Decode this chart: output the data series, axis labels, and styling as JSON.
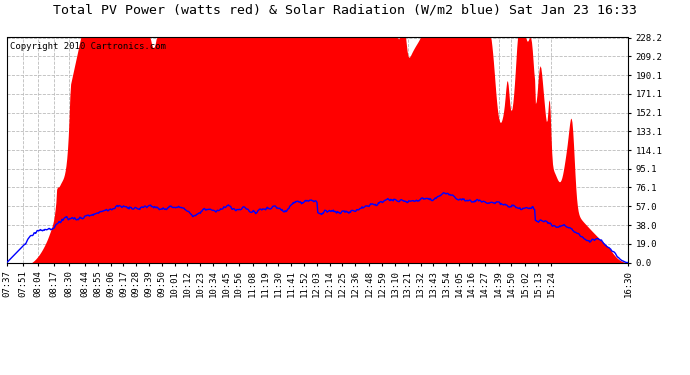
{
  "title": "Total PV Power (watts red) & Solar Radiation (W/m2 blue) Sat Jan 23 16:33",
  "copyright": "Copyright 2010 Cartronics.com",
  "ylabel_right": [
    "0.0",
    "19.0",
    "38.0",
    "57.0",
    "76.1",
    "95.1",
    "114.1",
    "133.1",
    "152.1",
    "171.1",
    "190.1",
    "209.2",
    "228.2"
  ],
  "yticks_right": [
    0.0,
    19.0,
    38.0,
    57.0,
    76.1,
    95.1,
    114.1,
    133.1,
    152.1,
    171.1,
    190.1,
    209.2,
    228.2
  ],
  "ylim": [
    0,
    228.2
  ],
  "background_color": "#ffffff",
  "plot_bg_color": "#ffffff",
  "grid_color": "#bbbbbb",
  "pv_color": "red",
  "solar_color": "blue",
  "title_fontsize": 9.5,
  "copyright_fontsize": 6.5,
  "tick_fontsize": 6.5,
  "xtick_labels": [
    "07:37",
    "07:51",
    "08:04",
    "08:17",
    "08:30",
    "08:44",
    "08:55",
    "09:06",
    "09:17",
    "09:28",
    "09:39",
    "09:50",
    "10:01",
    "10:12",
    "10:23",
    "10:34",
    "10:45",
    "10:56",
    "11:08",
    "11:19",
    "11:30",
    "11:41",
    "11:52",
    "12:03",
    "12:14",
    "12:25",
    "12:36",
    "12:48",
    "12:59",
    "13:10",
    "13:21",
    "13:32",
    "13:43",
    "13:54",
    "14:05",
    "14:16",
    "14:27",
    "14:39",
    "14:50",
    "15:02",
    "15:13",
    "15:24",
    "16:30"
  ]
}
